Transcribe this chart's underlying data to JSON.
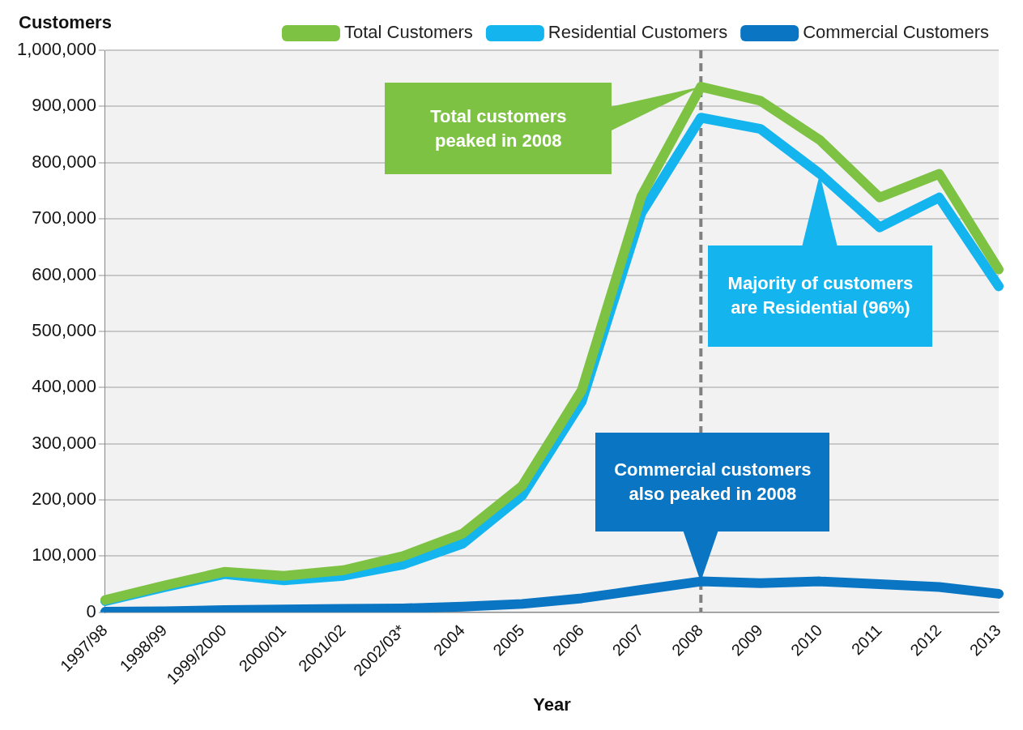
{
  "chart_data": {
    "type": "line",
    "xlabel": "Year",
    "ylabel": "Customers",
    "categories": [
      "1997/98",
      "1998/99",
      "1999/2000",
      "2000/01",
      "2001/02",
      "2002/03*",
      "2004",
      "2005",
      "2006",
      "2007",
      "2008",
      "2009",
      "2010",
      "2011",
      "2012",
      "2013"
    ],
    "series": [
      {
        "name": "Total Customers",
        "color": "#7dc243",
        "values": [
          22000,
          48000,
          72000,
          65000,
          75000,
          100000,
          140000,
          225000,
          395000,
          740000,
          935000,
          910000,
          840000,
          738000,
          780000,
          610000
        ]
      },
      {
        "name": "Residential Customers",
        "color": "#14b4ee",
        "values": [
          20000,
          45000,
          68000,
          57000,
          65000,
          85000,
          122000,
          208000,
          375000,
          710000,
          880000,
          860000,
          780000,
          685000,
          738000,
          580000
        ]
      },
      {
        "name": "Commercial Customers",
        "color": "#0a75c2",
        "values": [
          1000,
          2000,
          4000,
          5000,
          6000,
          7000,
          10000,
          15000,
          25000,
          40000,
          55000,
          52000,
          55000,
          50000,
          45000,
          33000
        ]
      }
    ],
    "ylim": [
      0,
      1000000
    ],
    "yticks": [
      0,
      {
        "value": 100000,
        "label": "100,000"
      },
      {
        "value": 200000,
        "label": "200,000"
      },
      {
        "value": 300000,
        "label": "300,000"
      },
      {
        "value": 400000,
        "label": "400,000"
      },
      {
        "value": 500000,
        "label": "500,000"
      },
      {
        "value": 600000,
        "label": "600,000"
      },
      {
        "value": 700000,
        "label": "700,000"
      },
      {
        "value": 800000,
        "label": "800,000"
      },
      {
        "value": 900000,
        "label": "900,000"
      },
      {
        "value": 1000000,
        "label": "1,000,000"
      }
    ],
    "grid": "y",
    "legend": "top",
    "marker": "none",
    "line_style": "solid",
    "ref_lines": [
      {
        "axis": "x",
        "value": "2008",
        "color": "#808080",
        "line_style": "dashed"
      }
    ],
    "annotations": [
      "Total customers peaked in 2008",
      "Majority of customers are Residential (96%)",
      "Commercial customers also peaked in 2008"
    ]
  }
}
